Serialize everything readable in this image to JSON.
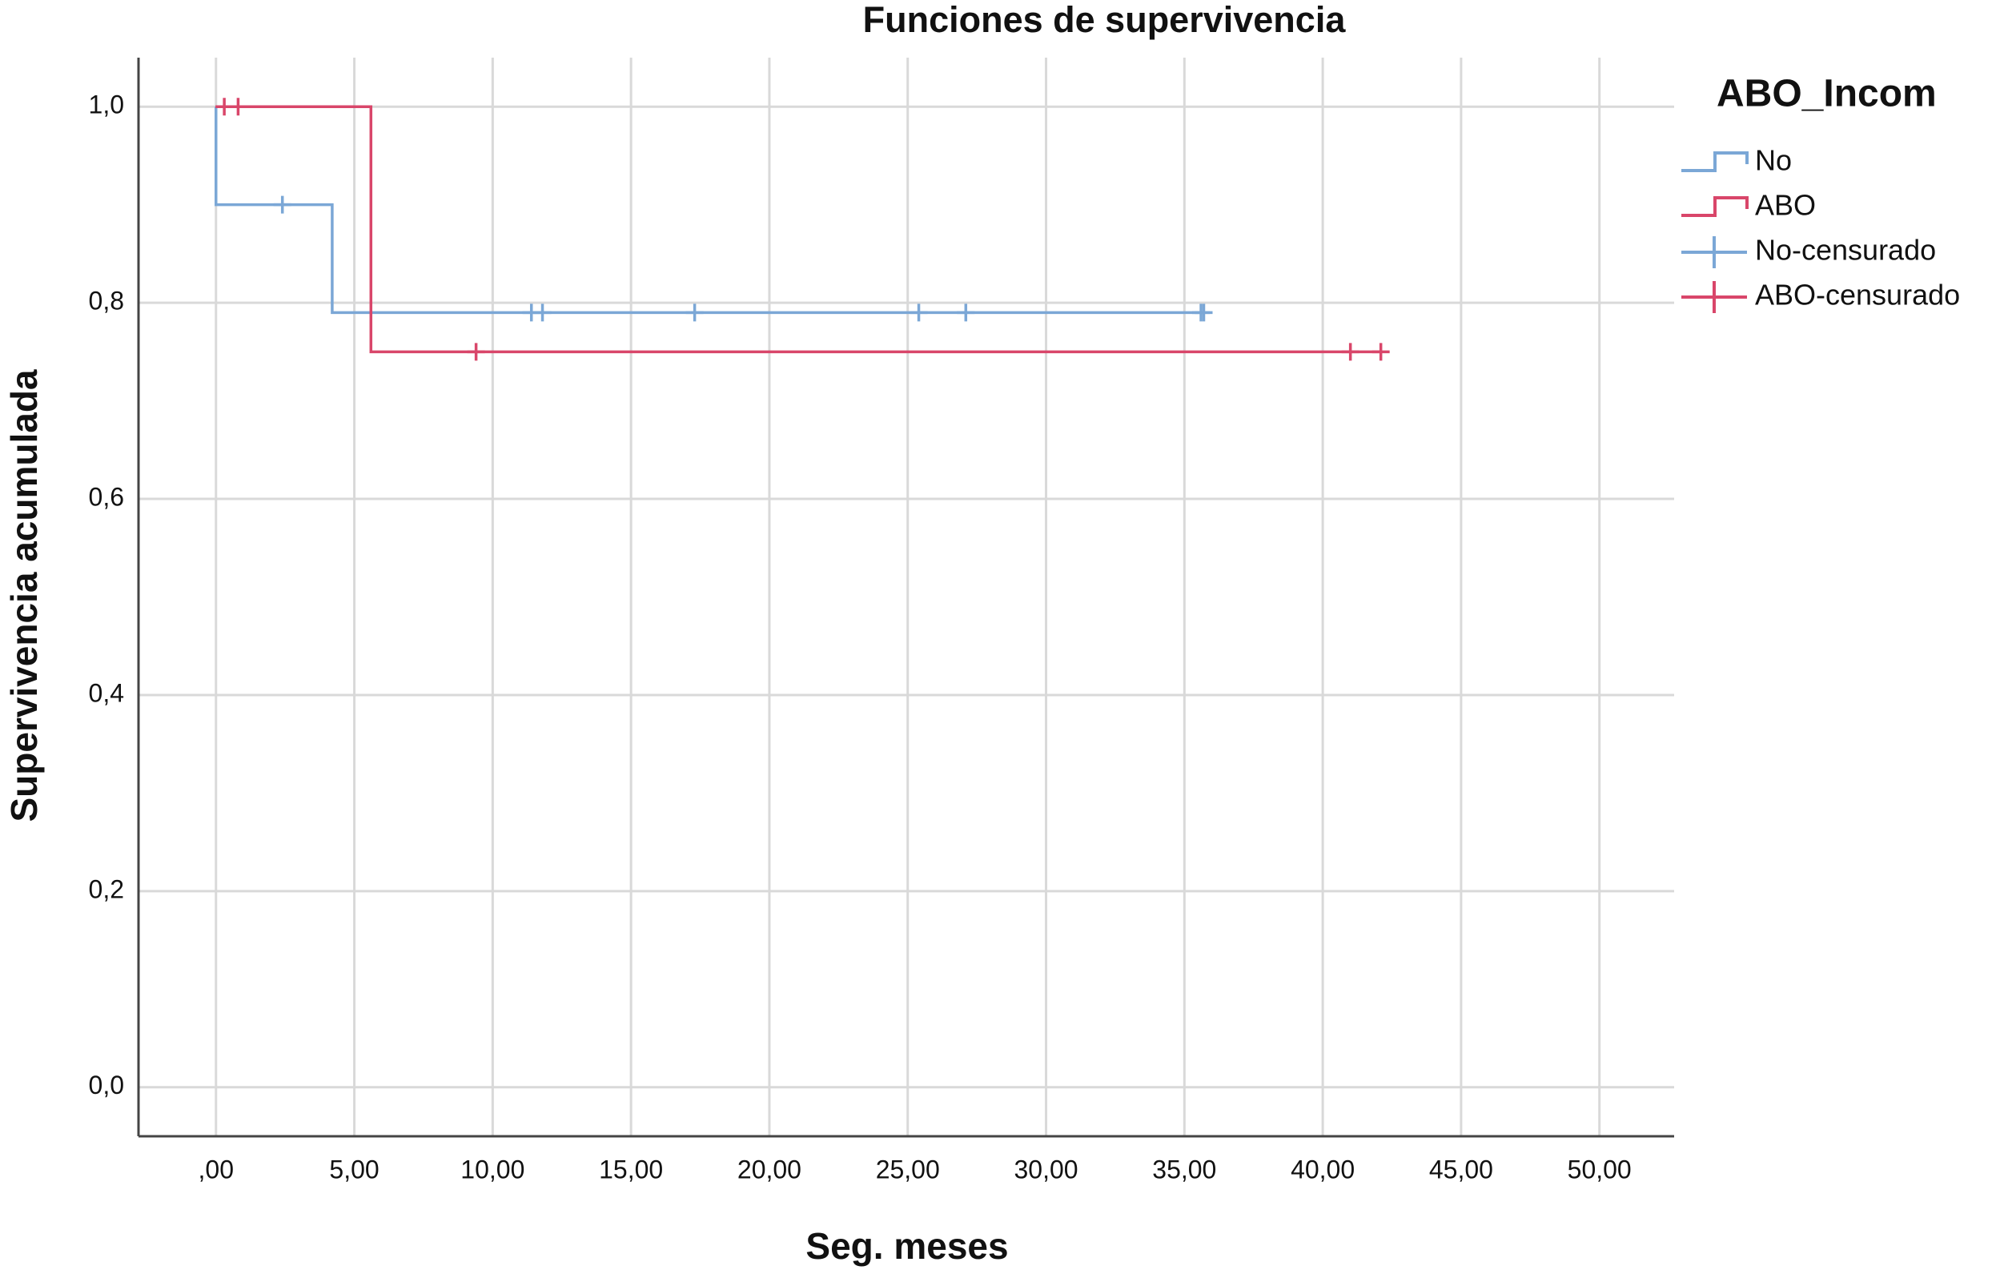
{
  "chart_data": {
    "type": "kaplan-meier",
    "title": "Funciones de supervivencia",
    "x_label": "Seg. meses",
    "y_label": "Supervivencia acumulada",
    "legend_title": "ABO_Incom",
    "legend": "right",
    "grid": true,
    "xlim": [
      -2.8,
      52.7
    ],
    "ylim": [
      -0.05,
      1.05
    ],
    "xticks": [
      {
        "value": 0,
        "label": ",00"
      },
      {
        "value": 5,
        "label": "5,00"
      },
      {
        "value": 10,
        "label": "10,00"
      },
      {
        "value": 15,
        "label": "15,00"
      },
      {
        "value": 20,
        "label": "20,00"
      },
      {
        "value": 25,
        "label": "25,00"
      },
      {
        "value": 30,
        "label": "30,00"
      },
      {
        "value": 35,
        "label": "35,00"
      },
      {
        "value": 40,
        "label": "40,00"
      },
      {
        "value": 45,
        "label": "45,00"
      },
      {
        "value": 50,
        "label": "50,00"
      }
    ],
    "yticks": [
      {
        "value": 0,
        "label": "0,0"
      },
      {
        "value": 0.2,
        "label": "0,2"
      },
      {
        "value": 0.4,
        "label": "0,4"
      },
      {
        "value": 0.6,
        "label": "0,6"
      },
      {
        "value": 0.8,
        "label": "0,8"
      },
      {
        "value": 1,
        "label": "1,0"
      }
    ],
    "series": [
      {
        "name": "No",
        "color": "#7ba7d6",
        "kind": "step",
        "x": [
          0,
          0,
          4.2,
          35.7
        ],
        "values": [
          1,
          0.9,
          0.79,
          0.79
        ]
      },
      {
        "name": "ABO",
        "color": "#d9466a",
        "kind": "step",
        "x": [
          0,
          5.6,
          42.1
        ],
        "values": [
          1,
          0.75,
          0.75
        ]
      },
      {
        "name": "No-censurado",
        "color": "#7ba7d6",
        "kind": "censor",
        "x": [
          2.4,
          11.4,
          11.8,
          17.3,
          25.4,
          27.1,
          35.6,
          35.7
        ],
        "values": [
          0.9,
          0.79,
          0.79,
          0.79,
          0.79,
          0.79,
          0.79,
          0.79
        ]
      },
      {
        "name": "ABO-censurado",
        "color": "#d9466a",
        "kind": "censor",
        "x": [
          0.3,
          0.8,
          9.4,
          41.0,
          42.1
        ],
        "values": [
          1,
          1,
          0.75,
          0.75,
          0.75
        ]
      }
    ]
  }
}
